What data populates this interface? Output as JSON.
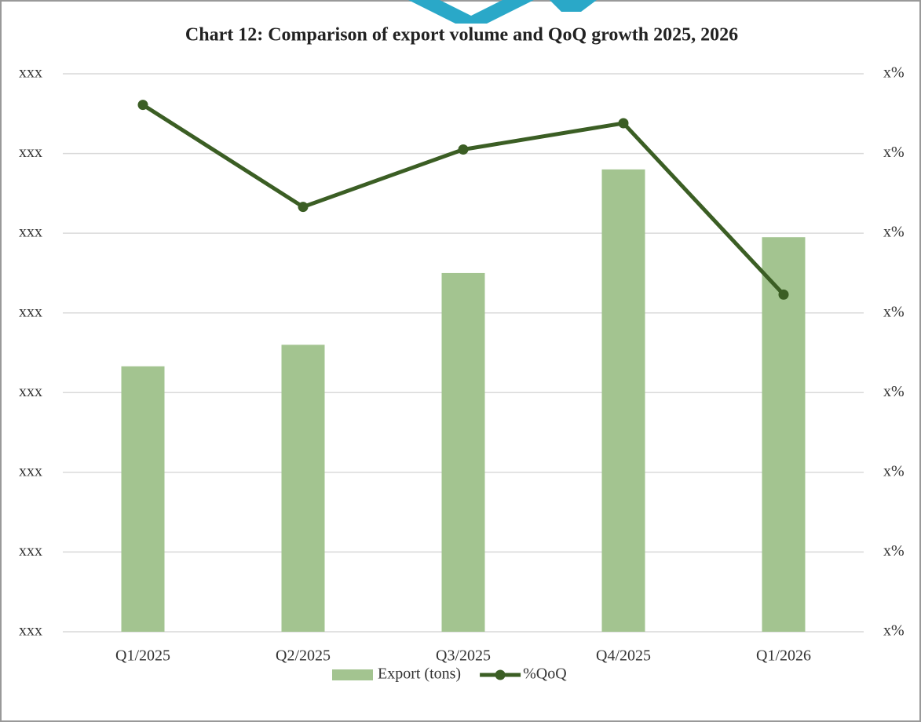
{
  "chart_data": {
    "type": "bar_line",
    "title": "Chart 12: Comparison of export volume and QoQ growth 2025, 2026",
    "categories": [
      "Q1/2025",
      "Q2/2025",
      "Q3/2025",
      "Q4/2025",
      "Q1/2026"
    ],
    "series": [
      {
        "name": "Export (tons)",
        "color": "#a3c490",
        "type": "bar",
        "values": [
          3.33,
          3.6,
          4.5,
          5.8,
          4.95
        ]
      },
      {
        "name": "%QoQ",
        "color": "#3b5e24",
        "type": "line",
        "axis": "y2",
        "values": [
          6.61,
          5.33,
          6.05,
          6.38,
          4.23
        ]
      }
    ],
    "ylim": [
      0,
      7
    ],
    "yticks": [
      {
        "value": 0,
        "label": "xxx"
      },
      {
        "value": 1,
        "label": "xxx"
      },
      {
        "value": 2,
        "label": "xxx"
      },
      {
        "value": 3,
        "label": "xxx"
      },
      {
        "value": 4,
        "label": "xxx"
      },
      {
        "value": 5,
        "label": "xxx"
      },
      {
        "value": 6,
        "label": "xxx"
      },
      {
        "value": 7,
        "label": "xxx"
      }
    ],
    "y2lim": [
      0,
      7
    ],
    "y2ticks": [
      {
        "value": 0,
        "label": "x%"
      },
      {
        "value": 1,
        "label": "x%"
      },
      {
        "value": 2,
        "label": "x%"
      },
      {
        "value": 3,
        "label": "x%"
      },
      {
        "value": 4,
        "label": "x%"
      },
      {
        "value": 5,
        "label": "x%"
      },
      {
        "value": 6,
        "label": "x%"
      },
      {
        "value": 7,
        "label": "x%"
      }
    ],
    "grid": true,
    "legend": "bottom"
  }
}
